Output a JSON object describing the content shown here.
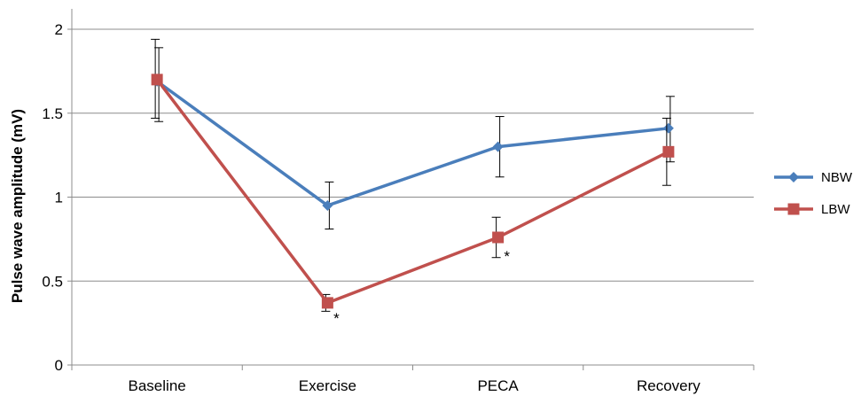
{
  "chart_data": {
    "type": "line",
    "title": "",
    "xlabel": "",
    "ylabel": "Pulse wave amplitude (mV)",
    "categories": [
      "Baseline",
      "Exercise",
      "PECA",
      "Recovery"
    ],
    "ylim": [
      0,
      2
    ],
    "yticks": [
      0,
      0.5,
      1,
      1.5,
      2
    ],
    "ytick_labels": [
      "0",
      "0.5",
      "1",
      "1.5",
      "2"
    ],
    "grid": true,
    "legend_position": "right",
    "series": [
      {
        "name": "NBW",
        "color": "#4a7ebb",
        "marker": "diamond",
        "values": [
          1.69,
          0.95,
          1.3,
          1.41
        ],
        "err_low": [
          1.45,
          0.81,
          1.12,
          1.21
        ],
        "err_high": [
          1.89,
          1.09,
          1.48,
          1.6
        ]
      },
      {
        "name": "LBW",
        "color": "#c0504d",
        "marker": "square",
        "values": [
          1.7,
          0.37,
          0.76,
          1.27
        ],
        "err_low": [
          1.47,
          0.32,
          0.64,
          1.07
        ],
        "err_high": [
          1.94,
          0.42,
          0.88,
          1.47
        ]
      }
    ],
    "annotations": [
      {
        "text": "*",
        "category": "Exercise",
        "y": 0.28
      },
      {
        "text": "*",
        "category": "PECA",
        "y": 0.65
      }
    ]
  }
}
